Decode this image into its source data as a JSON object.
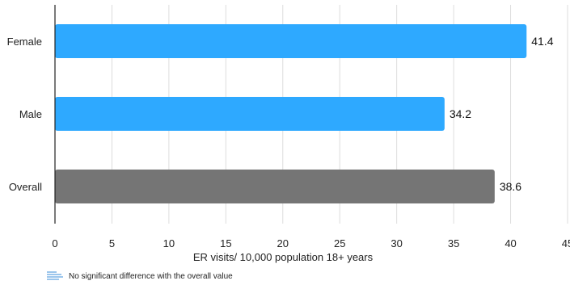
{
  "chart_data": {
    "type": "bar",
    "orientation": "horizontal",
    "categories": [
      "Female",
      "Male",
      "Overall"
    ],
    "values": [
      41.4,
      34.2,
      38.6
    ],
    "value_labels": [
      "41.4",
      "34.2",
      "38.6"
    ],
    "bar_colors": [
      "#2ea9ff",
      "#2ea9ff",
      "#757575"
    ],
    "xlabel": "ER visits/ 10,000 population 18+ years",
    "ylabel": "",
    "title": "",
    "xlim": [
      0,
      45
    ],
    "xticks": [
      0,
      5,
      10,
      15,
      20,
      25,
      30,
      35,
      40,
      45
    ],
    "grid": "vertical",
    "grid_color": "#dddddd"
  },
  "legend": {
    "text": "No significant difference with the overall value",
    "icon": "striped-swatch-icon",
    "color": "#9cc6ec"
  }
}
